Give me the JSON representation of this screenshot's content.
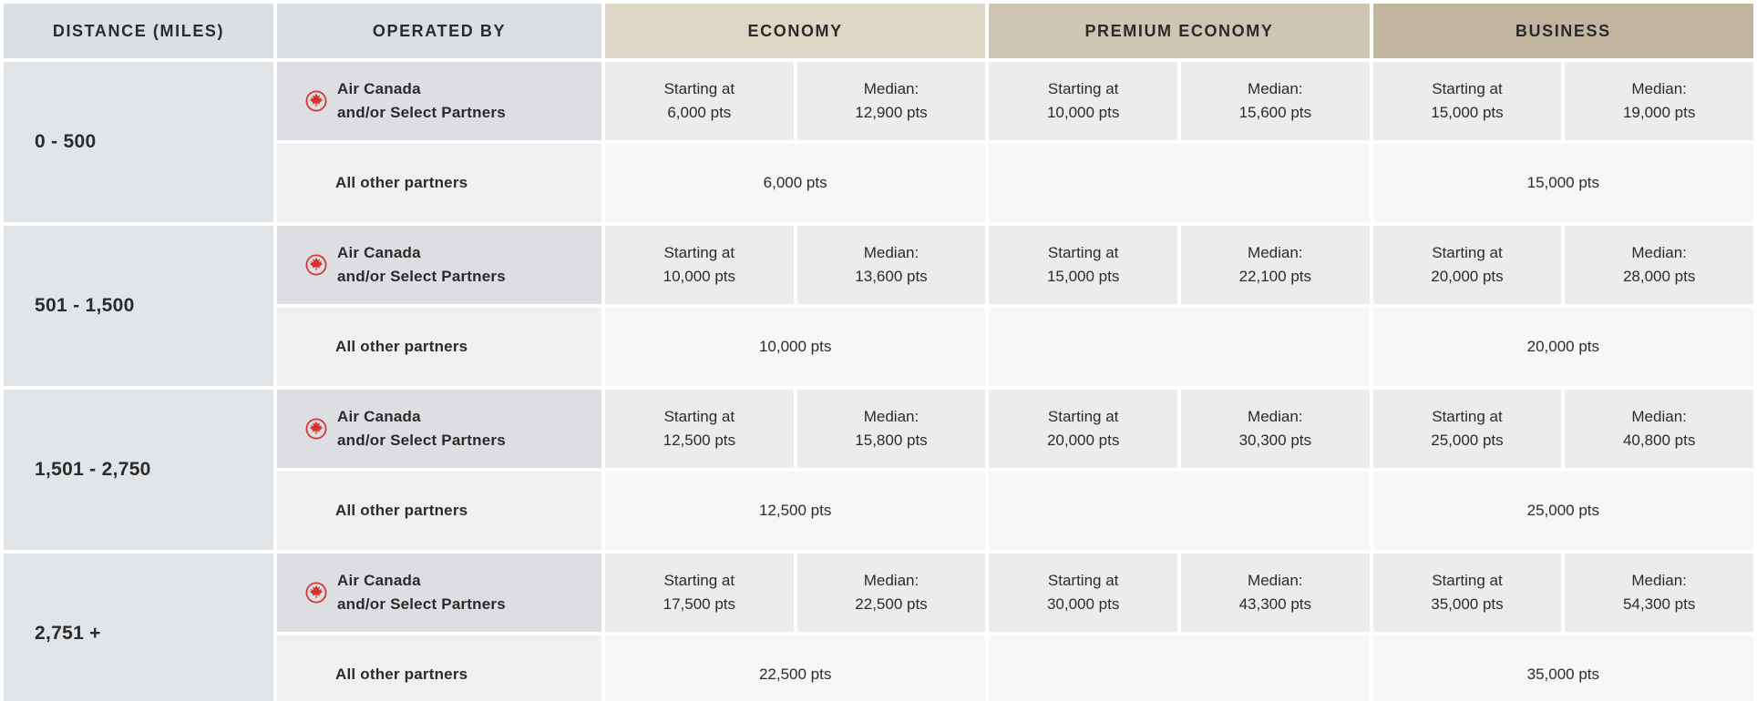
{
  "header": {
    "distance": "DISTANCE (MILES)",
    "operated_by": "OPERATED BY",
    "cabins": {
      "economy": "ECONOMY",
      "premium_economy": "PREMIUM ECONOMY",
      "business": "BUSINESS"
    }
  },
  "labels": {
    "starting": "Starting at",
    "median": "Median:"
  },
  "operators": {
    "air_canada_line1": "Air Canada",
    "air_canada_line2": "and/or Select Partners",
    "all_other": "All other partners"
  },
  "colors": {
    "air_canada_red": "#d9322e",
    "header_blue_gray": "#dadfe3",
    "economy_header_tan": "#ded6c7",
    "premium_economy_header_tan": "#cfc5b3",
    "business_header_tan": "#c2b59f",
    "distance_cell_bg": "#e2e5e8",
    "air_canada_row_bg": "#ececed",
    "other_partners_row_bg": "#f7f7f8"
  },
  "rows": [
    {
      "distance": "0 - 500",
      "air_canada": {
        "economy": {
          "starting": "6,000 pts",
          "median": "12,900 pts"
        },
        "premium_economy": {
          "starting": "10,000 pts",
          "median": "15,600 pts"
        },
        "business": {
          "starting": "15,000 pts",
          "median": "19,000 pts"
        }
      },
      "all_other": {
        "economy": "6,000 pts",
        "premium_economy": "",
        "business": "15,000 pts"
      }
    },
    {
      "distance": "501 - 1,500",
      "air_canada": {
        "economy": {
          "starting": "10,000 pts",
          "median": "13,600 pts"
        },
        "premium_economy": {
          "starting": "15,000 pts",
          "median": "22,100 pts"
        },
        "business": {
          "starting": "20,000 pts",
          "median": "28,000 pts"
        }
      },
      "all_other": {
        "economy": "10,000 pts",
        "premium_economy": "",
        "business": "20,000 pts"
      }
    },
    {
      "distance": "1,501 - 2,750",
      "air_canada": {
        "economy": {
          "starting": "12,500 pts",
          "median": "15,800 pts"
        },
        "premium_economy": {
          "starting": "20,000 pts",
          "median": "30,300 pts"
        },
        "business": {
          "starting": "25,000 pts",
          "median": "40,800 pts"
        }
      },
      "all_other": {
        "economy": "12,500 pts",
        "premium_economy": "",
        "business": "25,000 pts"
      }
    },
    {
      "distance": "2,751 +",
      "air_canada": {
        "economy": {
          "starting": "17,500 pts",
          "median": "22,500 pts"
        },
        "premium_economy": {
          "starting": "30,000 pts",
          "median": "43,300 pts"
        },
        "business": {
          "starting": "35,000 pts",
          "median": "54,300 pts"
        }
      },
      "all_other": {
        "economy": "22,500 pts",
        "premium_economy": "",
        "business": "35,000 pts"
      }
    }
  ],
  "chart_data": {
    "type": "table",
    "title": "Flight rewards points chart by distance and cabin",
    "columns": [
      "DISTANCE (MILES)",
      "OPERATED BY",
      "ECONOMY Starting at",
      "ECONOMY Median",
      "PREMIUM ECONOMY Starting at",
      "PREMIUM ECONOMY Median",
      "BUSINESS Starting at",
      "BUSINESS Median"
    ],
    "rows": [
      [
        "0 - 500",
        "Air Canada and/or Select Partners",
        "6,000 pts",
        "12,900 pts",
        "10,000 pts",
        "15,600 pts",
        "15,000 pts",
        "19,000 pts"
      ],
      [
        "0 - 500",
        "All other partners",
        "6,000 pts",
        "6,000 pts",
        "",
        "",
        "15,000 pts",
        "15,000 pts"
      ],
      [
        "501 - 1,500",
        "Air Canada and/or Select Partners",
        "10,000 pts",
        "13,600 pts",
        "15,000 pts",
        "22,100 pts",
        "20,000 pts",
        "28,000 pts"
      ],
      [
        "501 - 1,500",
        "All other partners",
        "10,000 pts",
        "10,000 pts",
        "",
        "",
        "20,000 pts",
        "20,000 pts"
      ],
      [
        "1,501 - 2,750",
        "Air Canada and/or Select Partners",
        "12,500 pts",
        "15,800 pts",
        "20,000 pts",
        "30,300 pts",
        "25,000 pts",
        "40,800 pts"
      ],
      [
        "1,501 - 2,750",
        "All other partners",
        "12,500 pts",
        "12,500 pts",
        "",
        "",
        "25,000 pts",
        "25,000 pts"
      ],
      [
        "2,751 +",
        "Air Canada and/or Select Partners",
        "17,500 pts",
        "22,500 pts",
        "30,000 pts",
        "43,300 pts",
        "35,000 pts",
        "54,300 pts"
      ],
      [
        "2,751 +",
        "All other partners",
        "22,500 pts",
        "22,500 pts",
        "",
        "",
        "35,000 pts",
        "35,000 pts"
      ]
    ]
  }
}
